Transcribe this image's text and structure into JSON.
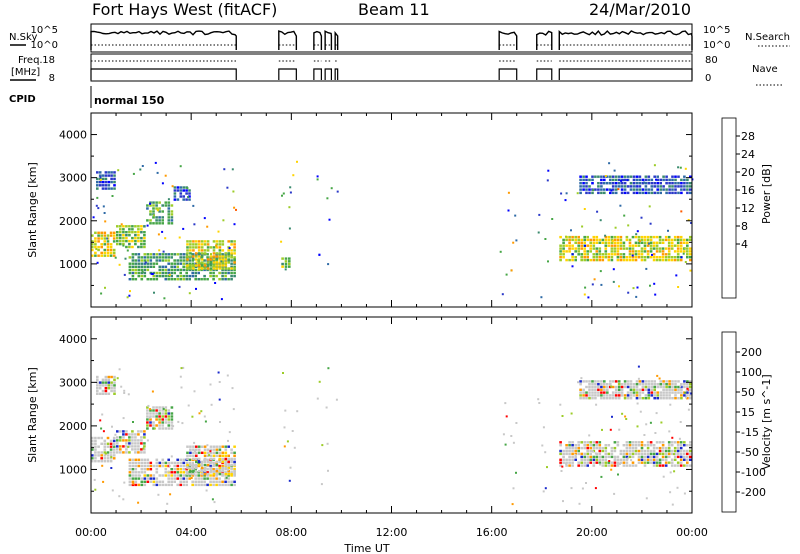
{
  "header": {
    "radar": "Fort Hays West (fitACF)",
    "beam": "Beam 11",
    "date": "24/Mar/2010"
  },
  "params": {
    "nsky_label": "N.Sky",
    "nsky_ticks": [
      "10^5",
      "10^0"
    ],
    "nsearch_label": "N.Search",
    "nsearch_ticks": [
      "10^5",
      "10^0"
    ],
    "freq_label_1": "Freq.",
    "freq_label_2": "[MHz]",
    "freq_ticks": [
      "18",
      "8"
    ],
    "nave_label": "Nave",
    "nave_ticks": [
      "80",
      "0"
    ],
    "cpid_label": "CPID",
    "cpid_value": "normal 150"
  },
  "axes": {
    "x_ticks": [
      "00:00",
      "04:00",
      "08:00",
      "12:00",
      "16:00",
      "20:00",
      "00:00"
    ],
    "x_label": "Time UT",
    "y_label": "Slant Range [km]",
    "y_ticks": [
      "4000",
      "3000",
      "2000",
      "1000"
    ]
  },
  "colorbars": {
    "power": {
      "label": "Power [dB]",
      "ticks": [
        "28",
        "24",
        "20",
        "16",
        "12",
        "8",
        "4"
      ],
      "colors": [
        "#0000ff",
        "#2a38c8",
        "#2e6aa6",
        "#3a8a6e",
        "#46a646",
        "#9ccc28",
        "#ffd400",
        "#ff9a00",
        "#ff5a00",
        "#ff0000"
      ]
    },
    "velocity": {
      "label": "Velocity [m s^-1]",
      "ticks": [
        "200",
        "100",
        "50",
        "15",
        "-15",
        "-50",
        "-100",
        "-200"
      ],
      "colors": [
        "#1a2acc",
        "#3a5ac8",
        "#46a646",
        "#9ccc28",
        "#c8c8c8",
        "#ffd400",
        "#ff9a00",
        "#ff5a00",
        "#ff0000"
      ]
    }
  },
  "chart_data": [
    {
      "type": "heatmap",
      "title": "Power",
      "x_range_hours": [
        0,
        24
      ],
      "ylim": [
        0,
        4500
      ],
      "ylabel": "Slant Range [km]",
      "xlabel": "",
      "data_periods_hours": [
        [
          0,
          5.8
        ],
        [
          7.5,
          8.2
        ],
        [
          8.9,
          9.2
        ],
        [
          9.35,
          9.6
        ],
        [
          9.75,
          9.85
        ],
        [
          16.3,
          17.0
        ],
        [
          17.8,
          18.4
        ],
        [
          18.7,
          24
        ]
      ],
      "echo_regions": [
        {
          "t": [
            0.0,
            1.0
          ],
          "range_km": [
            1150,
            1750
          ],
          "level_db": 20
        },
        {
          "t": [
            1.0,
            2.2
          ],
          "range_km": [
            1350,
            1900
          ],
          "level_db": 16
        },
        {
          "t": [
            2.2,
            3.3
          ],
          "range_km": [
            1900,
            2450
          ],
          "level_db": 12
        },
        {
          "t": [
            3.3,
            4.0
          ],
          "range_km": [
            2450,
            2800
          ],
          "level_db": 8
        },
        {
          "t": [
            0.2,
            1.0
          ],
          "range_km": [
            2700,
            3150
          ],
          "level_db": 6
        },
        {
          "t": [
            1.5,
            5.8
          ],
          "range_km": [
            600,
            1250
          ],
          "level_db": 14
        },
        {
          "t": [
            3.8,
            5.8
          ],
          "range_km": [
            850,
            1550
          ],
          "level_db": 18
        },
        {
          "t": [
            7.6,
            8.0
          ],
          "range_km": [
            900,
            1150
          ],
          "level_db": 16
        },
        {
          "t": [
            18.7,
            24.0
          ],
          "range_km": [
            1050,
            1650
          ],
          "level_db": 20
        },
        {
          "t": [
            19.5,
            24.0
          ],
          "range_km": [
            2600,
            3050
          ],
          "level_db": 6
        }
      ]
    },
    {
      "type": "heatmap",
      "title": "Velocity",
      "x_range_hours": [
        0,
        24
      ],
      "ylim": [
        0,
        4500
      ],
      "ylabel": "Slant Range [km]",
      "xlabel": "Time UT",
      "echo_regions": [
        {
          "t": [
            0.0,
            1.0
          ],
          "range_km": [
            1150,
            1750
          ],
          "velocity_ms": 0
        },
        {
          "t": [
            1.0,
            2.2
          ],
          "range_km": [
            1350,
            1900
          ],
          "velocity_ms": 0
        },
        {
          "t": [
            2.2,
            3.3
          ],
          "range_km": [
            1900,
            2450
          ],
          "velocity_ms": 0
        },
        {
          "t": [
            0.2,
            1.0
          ],
          "range_km": [
            2700,
            3150
          ],
          "velocity_ms": 0
        },
        {
          "t": [
            1.5,
            5.8
          ],
          "range_km": [
            600,
            1250
          ],
          "velocity_ms": -30
        },
        {
          "t": [
            3.8,
            5.8
          ],
          "range_km": [
            850,
            1550
          ],
          "velocity_ms": -20
        },
        {
          "t": [
            18.7,
            24.0
          ],
          "range_km": [
            1050,
            1650
          ],
          "velocity_ms": 0
        },
        {
          "t": [
            19.5,
            24.0
          ],
          "range_km": [
            2600,
            3050
          ],
          "velocity_ms": 0
        }
      ]
    }
  ]
}
